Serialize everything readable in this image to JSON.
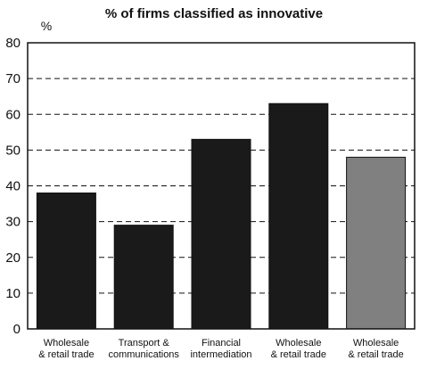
{
  "chart_data": {
    "type": "bar",
    "title": "% of firms classified as innovative",
    "ylabel": "%",
    "xlabel": "",
    "ylim": [
      0,
      80
    ],
    "yticks": [
      0,
      10,
      20,
      30,
      40,
      50,
      60,
      70,
      80
    ],
    "grid": "dashed-horizontal",
    "categories": [
      [
        "Wholesale",
        "& retail trade"
      ],
      [
        "Transport &",
        "communications"
      ],
      [
        "Financial",
        "intermediation"
      ],
      [
        "Wholesale",
        "& retail trade"
      ],
      [
        "Wholesale",
        "& retail trade"
      ]
    ],
    "values": [
      38,
      29,
      53,
      63,
      48
    ],
    "colors": [
      "#1a1a1a",
      "#1a1a1a",
      "#1a1a1a",
      "#1a1a1a",
      "#808080"
    ]
  }
}
